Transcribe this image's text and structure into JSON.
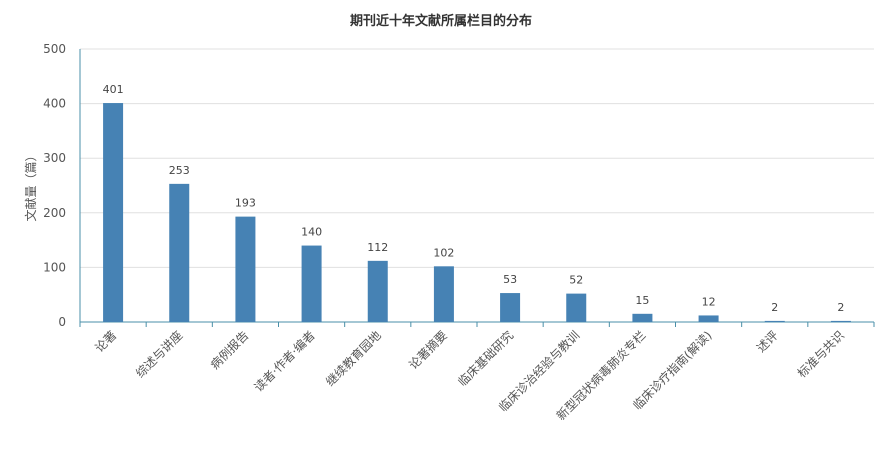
{
  "chart_data": {
    "type": "bar",
    "title": "期刊近十年文献所属栏目的分布",
    "xlabel": "",
    "ylabel": "文献量（篇）",
    "ylim": [
      0,
      500
    ],
    "yticks": [
      0,
      100,
      200,
      300,
      400,
      500
    ],
    "grid": true,
    "categories": [
      "论著",
      "综述与讲座",
      "病例报告",
      "读者·作者·编者",
      "继续教育园地",
      "论著摘要",
      "临床基础研究",
      "临床诊治经验与教训",
      "新型冠状病毒肺炎专栏",
      "临床诊疗指南(解读)",
      "述评",
      "标准与共识"
    ],
    "values": [
      401,
      253,
      193,
      140,
      112,
      102,
      53,
      52,
      15,
      12,
      2,
      2
    ],
    "colors": {
      "bar": "#4682b4",
      "axis": "#4a8fa8",
      "grid": "#e0e0e0"
    }
  }
}
